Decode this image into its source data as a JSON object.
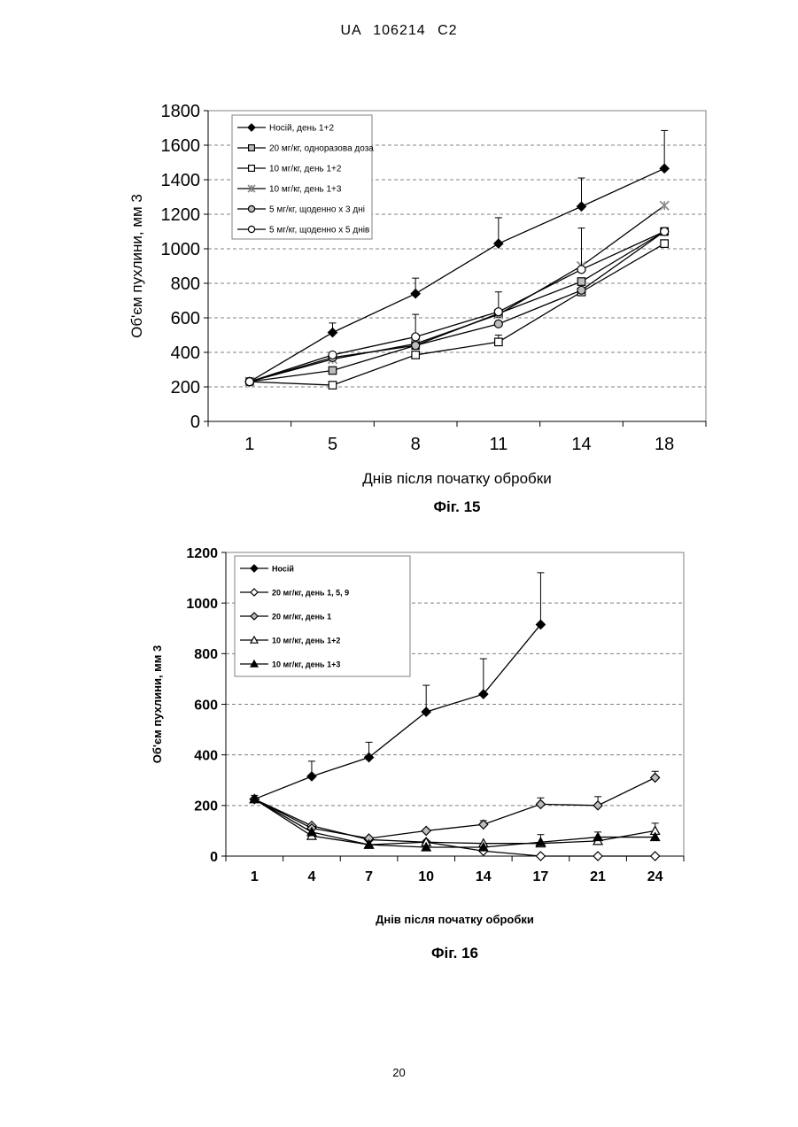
{
  "header": {
    "text": "UA   106214   C2"
  },
  "page_number": "20",
  "colors": {
    "ink": "#000000",
    "grid": "#808080",
    "plot_bg": "#ffffff",
    "hollow": "#ffffff",
    "hatched": "#bdbdbd"
  },
  "chart_data": [
    {
      "type": "line",
      "caption": "Фіг. 15",
      "xlabel": "Днів після початку обробки",
      "ylabel": "Об'єм пухлини, мм 3",
      "categories": [
        "1",
        "5",
        "8",
        "11",
        "14",
        "18"
      ],
      "ylim": [
        0,
        1800
      ],
      "yticks": [
        0,
        200,
        400,
        600,
        800,
        1000,
        1200,
        1400,
        1600,
        1800
      ],
      "grid": "horizontal dashed",
      "legend_position": "top-left",
      "series": [
        {
          "name": "Носій, день 1+2",
          "marker": "diamond-filled",
          "values": [
            230,
            515,
            740,
            1030,
            1245,
            1465
          ],
          "error_plus": [
            0,
            55,
            90,
            150,
            165,
            220
          ]
        },
        {
          "name": "20 мг/кг, одноразова доза",
          "marker": "square-hatched",
          "values": [
            230,
            295,
            440,
            625,
            810,
            1100
          ],
          "error_plus": [
            0,
            0,
            0,
            0,
            0,
            0
          ]
        },
        {
          "name": "10 мг/кг, день 1+2",
          "marker": "square-open",
          "values": [
            230,
            210,
            385,
            460,
            750,
            1030
          ],
          "error_plus": [
            0,
            0,
            0,
            40,
            0,
            0
          ]
        },
        {
          "name": "10 мг/кг, день 1+3",
          "marker": "cross-grey",
          "values": [
            230,
            360,
            450,
            620,
            900,
            1250
          ],
          "error_plus": [
            0,
            0,
            0,
            130,
            0,
            0
          ]
        },
        {
          "name": "5 мг/кг, щоденно х 3 дні",
          "marker": "circle-hatched",
          "values": [
            230,
            370,
            440,
            565,
            760,
            1100
          ],
          "error_plus": [
            0,
            0,
            0,
            0,
            0,
            0
          ]
        },
        {
          "name": "5 мг/кг, щоденно х 5 днів",
          "marker": "circle-open",
          "values": [
            230,
            385,
            490,
            635,
            880,
            1100
          ],
          "error_plus": [
            0,
            0,
            130,
            0,
            240,
            0
          ]
        }
      ]
    },
    {
      "type": "line",
      "caption": "Фіг. 16",
      "xlabel": "Днів після початку обробки",
      "ylabel": "Об'єм пухлини, мм 3",
      "categories": [
        "1",
        "4",
        "7",
        "10",
        "14",
        "17",
        "21",
        "24"
      ],
      "ylim": [
        0,
        1200
      ],
      "yticks": [
        0,
        200,
        400,
        600,
        800,
        1000,
        1200
      ],
      "grid": "horizontal dashed",
      "legend_position": "top-left",
      "series": [
        {
          "name": "Носій",
          "marker": "diamond-filled",
          "values": [
            225,
            315,
            390,
            570,
            640,
            915,
            null,
            null
          ],
          "error_plus": [
            15,
            60,
            60,
            105,
            140,
            205,
            null,
            null
          ]
        },
        {
          "name": "20 мг/кг, день 1, 5, 9",
          "marker": "diamond-open",
          "values": [
            225,
            120,
            65,
            55,
            20,
            0,
            0,
            0
          ],
          "error_plus": [
            0,
            0,
            0,
            0,
            0,
            0,
            0,
            0
          ]
        },
        {
          "name": "20 мг/кг, день 1",
          "marker": "diamond-hatched",
          "values": [
            225,
            110,
            70,
            100,
            125,
            205,
            200,
            310
          ],
          "error_plus": [
            0,
            0,
            0,
            0,
            15,
            25,
            35,
            25
          ]
        },
        {
          "name": "10 мг/кг, день 1+2",
          "marker": "triangle-open",
          "values": [
            225,
            80,
            45,
            55,
            50,
            50,
            60,
            100
          ],
          "error_plus": [
            0,
            0,
            0,
            0,
            0,
            0,
            0,
            30
          ]
        },
        {
          "name": "10 мг/кг, день 1+3",
          "marker": "triangle-filled",
          "values": [
            225,
            95,
            45,
            35,
            35,
            55,
            75,
            75
          ],
          "error_plus": [
            0,
            0,
            0,
            0,
            0,
            30,
            20,
            0
          ]
        }
      ]
    }
  ]
}
